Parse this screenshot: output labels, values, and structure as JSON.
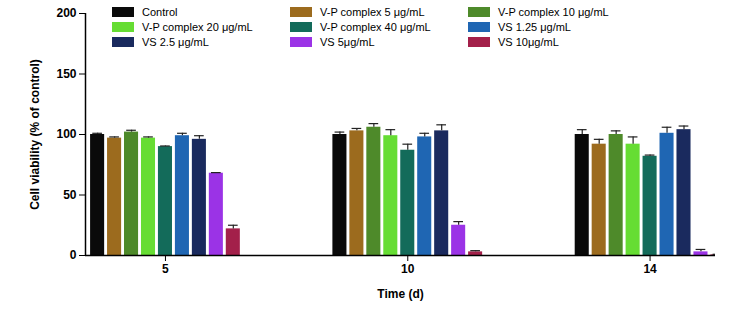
{
  "chart_data": {
    "type": "bar",
    "x_label": "Time (d)",
    "y_label": "Cell viability (% of control)",
    "categories": [
      5,
      10,
      14
    ],
    "series": [
      {
        "name": "Control",
        "color": "#0a0a0a",
        "values": [
          100,
          100,
          100
        ],
        "errors": [
          1,
          2,
          4
        ]
      },
      {
        "name": "V-P complex 5 μg/mL",
        "color": "#9c6b1e",
        "values": [
          97,
          103,
          92
        ],
        "errors": [
          1,
          2,
          4
        ]
      },
      {
        "name": "V-P complex 10 μg/mL",
        "color": "#4e8a2a",
        "values": [
          102,
          106,
          100
        ],
        "errors": [
          1.5,
          3,
          3
        ]
      },
      {
        "name": "V-P complex 20 μg/mL",
        "color": "#66dd33",
        "values": [
          97,
          99,
          92
        ],
        "errors": [
          1,
          5,
          6
        ]
      },
      {
        "name": "V-P complex 40 μg/mL",
        "color": "#136b5a",
        "values": [
          90,
          87,
          82
        ],
        "errors": [
          0.5,
          5,
          1
        ]
      },
      {
        "name": "VS 1.25 μg/mL",
        "color": "#1f66b3",
        "values": [
          99,
          98,
          101
        ],
        "errors": [
          2,
          3,
          5
        ]
      },
      {
        "name": "VS 2.5 μg/mL",
        "color": "#1a2a5e",
        "values": [
          96,
          103,
          104
        ],
        "errors": [
          3,
          5,
          3
        ]
      },
      {
        "name": "VS 5μg/mL",
        "color": "#9b33e6",
        "values": [
          68,
          25,
          3
        ],
        "errors": [
          0.5,
          3,
          2
        ]
      },
      {
        "name": "VS 10μg/mL",
        "color": "#a3204a",
        "values": [
          22,
          3,
          0.5
        ],
        "errors": [
          3,
          1,
          0.5
        ]
      }
    ],
    "ylim": [
      0,
      200
    ],
    "yticks": [
      0,
      50,
      100,
      150,
      200
    ],
    "legend": "top"
  }
}
